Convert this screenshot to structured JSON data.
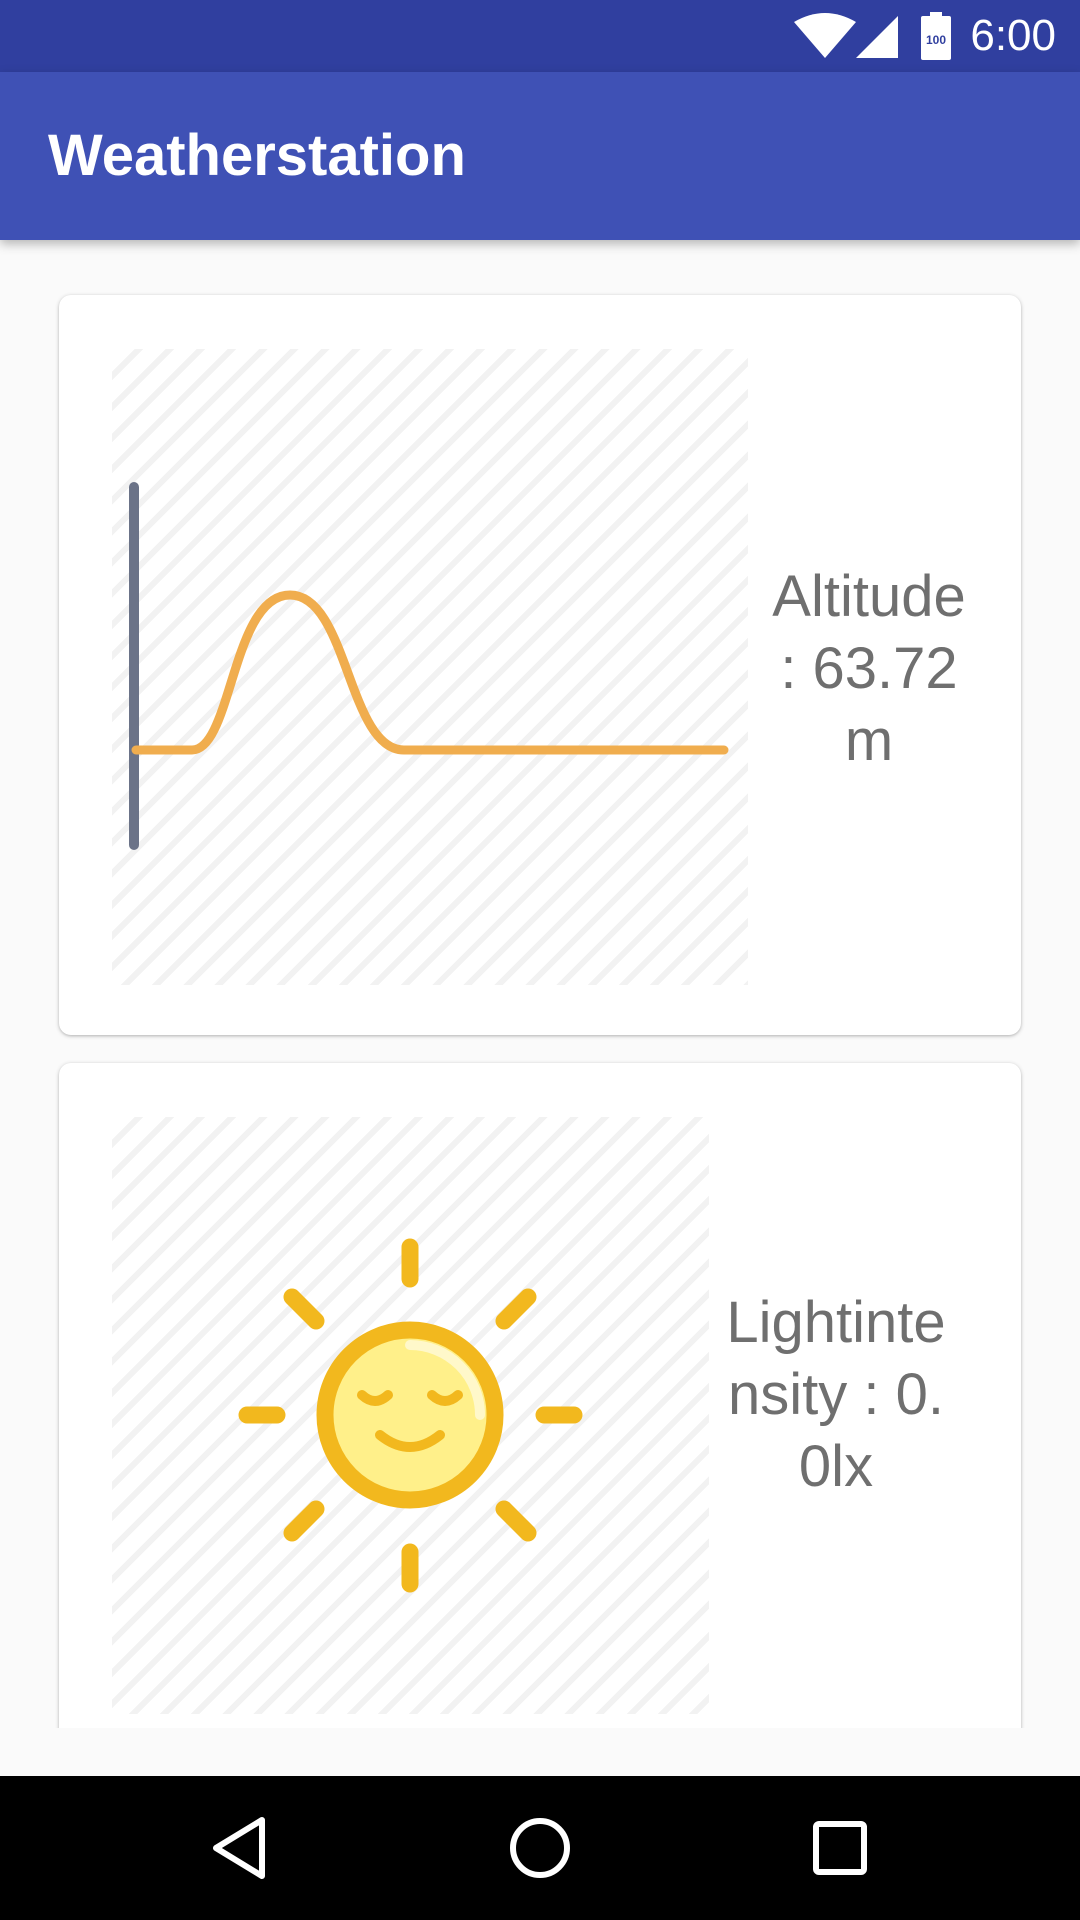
{
  "status_bar": {
    "time": "6:00",
    "battery_level": "100",
    "icons": [
      "wifi-icon",
      "cell-signal-icon",
      "battery-icon"
    ]
  },
  "app_bar": {
    "title": "Weatherstation"
  },
  "cards": [
    {
      "icon": "altitude-chart-icon",
      "text": "Altitude : 63.72m"
    },
    {
      "icon": "sun-icon",
      "text": "Lightintensity : 0.0lx"
    }
  ],
  "nav_bar": {
    "buttons": [
      "back-icon",
      "home-icon",
      "recents-icon"
    ]
  },
  "colors": {
    "status_bar": "#303f9f",
    "app_bar": "#3f51b5",
    "chart_axis": "#6b7388",
    "chart_line": "#f0ad4e",
    "sun": "#f2b81e",
    "sun_face": "#fff08a",
    "value_text": "#6f6f6f"
  }
}
